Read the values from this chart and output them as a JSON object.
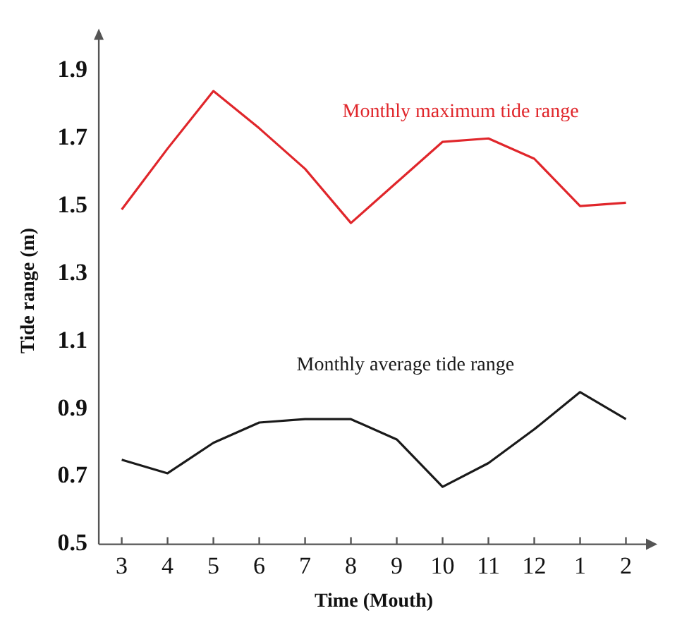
{
  "chart_data": {
    "type": "line",
    "xlabel": "Time (Mouth)",
    "ylabel": "Tide range (m)",
    "categories": [
      "3",
      "4",
      "5",
      "6",
      "7",
      "8",
      "9",
      "10",
      "11",
      "12",
      "1",
      "2"
    ],
    "series": [
      {
        "name": "Monthly maximum tide range",
        "color": "#e0262b",
        "values": [
          1.49,
          1.67,
          1.84,
          1.73,
          1.61,
          1.45,
          1.57,
          1.69,
          1.7,
          1.64,
          1.5,
          1.51
        ]
      },
      {
        "name": "Monthly average tide range",
        "color": "#1a1a1a",
        "values": [
          0.75,
          0.71,
          0.8,
          0.86,
          0.87,
          0.87,
          0.81,
          0.67,
          0.74,
          0.84,
          0.95,
          0.87
        ]
      }
    ],
    "ylim": [
      0.5,
      2.0
    ],
    "yticks": [
      0.5,
      0.7,
      0.9,
      1.1,
      1.3,
      1.5,
      1.7,
      1.9
    ],
    "grid": false,
    "legend": false,
    "marker": "none",
    "line_style": "solid"
  }
}
